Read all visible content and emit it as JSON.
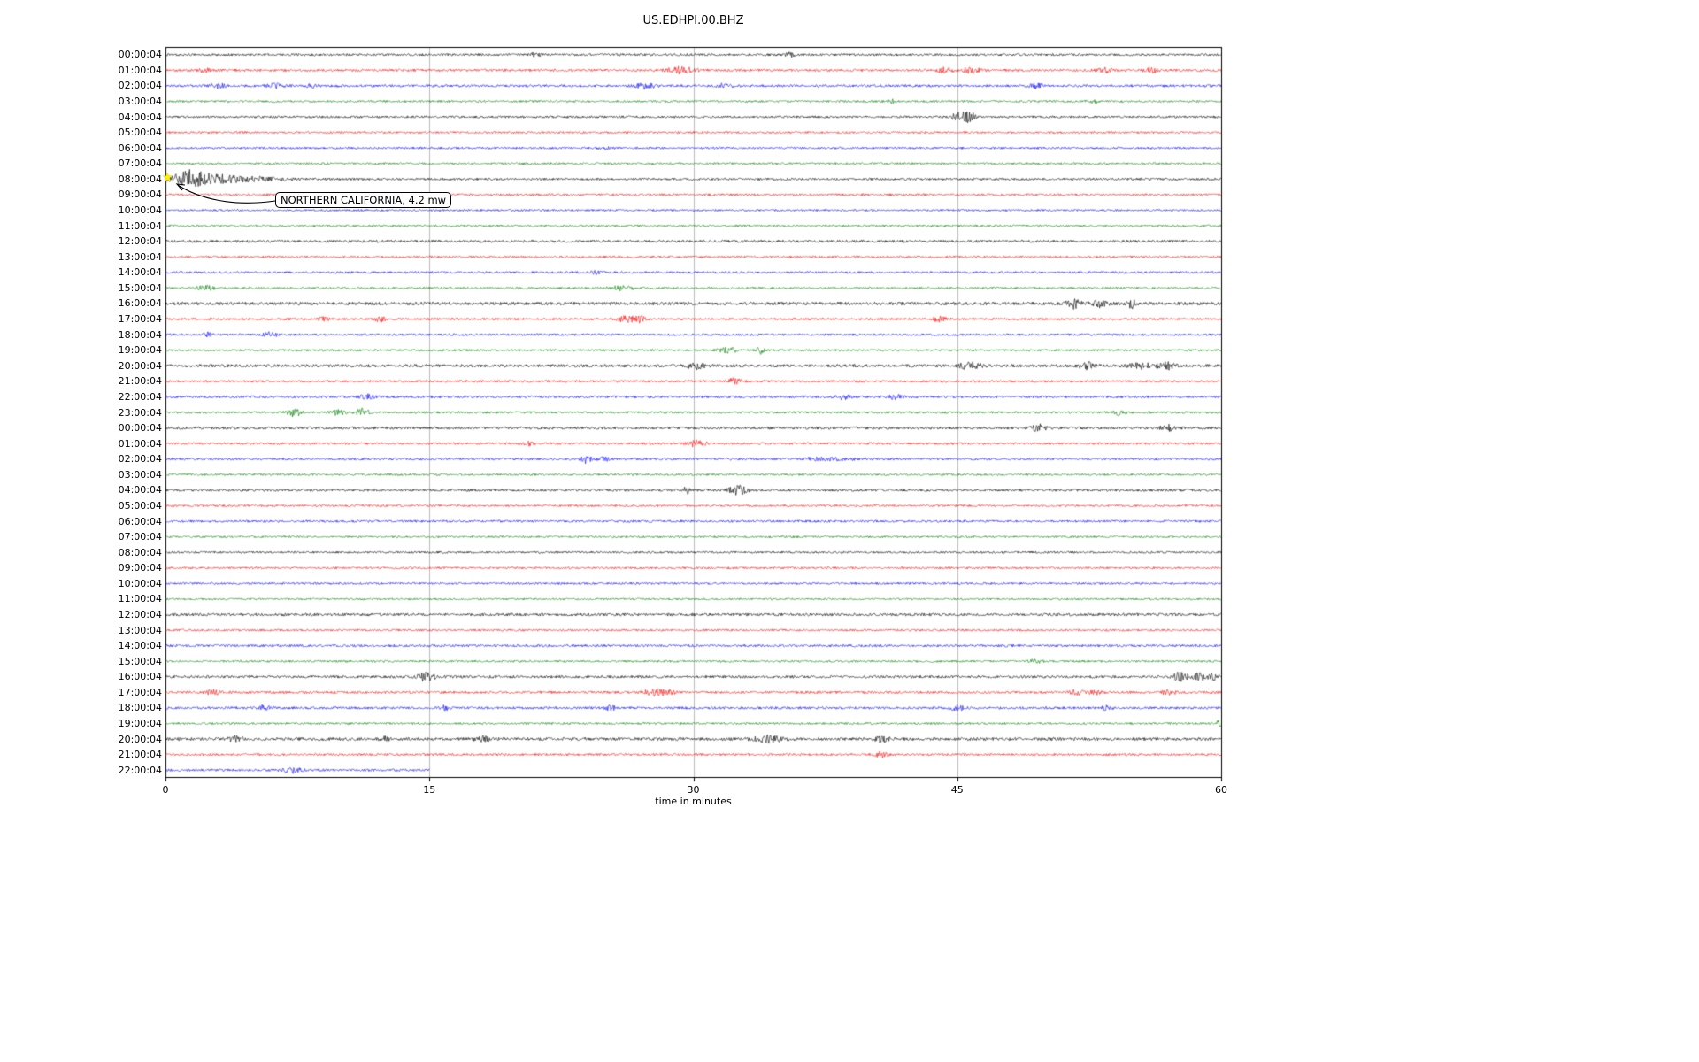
{
  "title": "US.EDHPI.00.BHZ",
  "chart_data": {
    "type": "line",
    "subtype": "helicorder-seismogram",
    "title": "US.EDHPI.00.BHZ",
    "xlabel": "time in minutes",
    "xlim": [
      0,
      60
    ],
    "x_ticks": [
      0,
      15,
      30,
      45,
      60
    ],
    "grid_x": [
      15,
      30,
      45
    ],
    "grid_on": true,
    "trace_color_cycle": [
      "#000000",
      "#ff0000",
      "#0000ff",
      "#008000"
    ],
    "event_marker": {
      "row_index": 8,
      "time_minutes": 0.2,
      "label": "NORTHERN CALIFORNIA, 4.2 mw",
      "marker": "star",
      "marker_color": "#ffff00"
    },
    "rows": [
      {
        "label": "00:00:04",
        "color": "#000000",
        "noise": 1.3,
        "bursts": [
          {
            "t": 21,
            "a": 2,
            "w": 0.3
          },
          {
            "t": 35.5,
            "a": 2,
            "w": 0.3
          }
        ]
      },
      {
        "label": "01:00:04",
        "color": "#ff0000",
        "noise": 1.4,
        "bursts": [
          {
            "t": 2.2,
            "a": 2,
            "w": 0.3
          },
          {
            "t": 29.3,
            "a": 3.5,
            "w": 0.8
          },
          {
            "t": 44.3,
            "a": 3,
            "w": 0.5
          },
          {
            "t": 45.8,
            "a": 3,
            "w": 0.5
          },
          {
            "t": 53.4,
            "a": 2.5,
            "w": 0.4
          },
          {
            "t": 56,
            "a": 2.5,
            "w": 0.4
          }
        ]
      },
      {
        "label": "02:00:04",
        "color": "#0000ff",
        "noise": 1.4,
        "bursts": [
          {
            "t": 3,
            "a": 2.5,
            "w": 0.4
          },
          {
            "t": 6.2,
            "a": 2.5,
            "w": 0.4
          },
          {
            "t": 8.3,
            "a": 2,
            "w": 0.3
          },
          {
            "t": 27.3,
            "a": 3,
            "w": 0.5
          },
          {
            "t": 31.8,
            "a": 2.5,
            "w": 0.4
          },
          {
            "t": 49.5,
            "a": 2.5,
            "w": 0.4
          }
        ]
      },
      {
        "label": "03:00:04",
        "color": "#008000",
        "noise": 1.2,
        "bursts": [
          {
            "t": 41.3,
            "a": 3,
            "w": 0.2
          },
          {
            "t": 52.7,
            "a": 2,
            "w": 0.3
          }
        ]
      },
      {
        "label": "04:00:04",
        "color": "#000000",
        "noise": 1.3,
        "bursts": [
          {
            "t": 45,
            "a": 5,
            "w": 0.3
          },
          {
            "t": 45.6,
            "a": 6,
            "w": 0.4
          }
        ]
      },
      {
        "label": "05:00:04",
        "color": "#ff0000",
        "noise": 1.2,
        "bursts": []
      },
      {
        "label": "06:00:04",
        "color": "#0000ff",
        "noise": 1.2,
        "bursts": [
          {
            "t": 25,
            "a": 1.5,
            "w": 0.3
          }
        ]
      },
      {
        "label": "07:00:04",
        "color": "#008000",
        "noise": 1.2,
        "bursts": []
      },
      {
        "label": "08:00:04",
        "color": "#000000",
        "noise": 1.3,
        "bursts": [
          {
            "t": 1.3,
            "a": 9,
            "w": 0.9
          },
          {
            "t": 2.8,
            "a": 4,
            "w": 1.2
          },
          {
            "t": 5,
            "a": 2,
            "w": 2
          }
        ]
      },
      {
        "label": "09:00:04",
        "color": "#ff0000",
        "noise": 1.2,
        "bursts": []
      },
      {
        "label": "10:00:04",
        "color": "#0000ff",
        "noise": 1.1,
        "bursts": []
      },
      {
        "label": "11:00:04",
        "color": "#008000",
        "noise": 1.1,
        "bursts": []
      },
      {
        "label": "12:00:04",
        "color": "#000000",
        "noise": 1.5,
        "bursts": []
      },
      {
        "label": "13:00:04",
        "color": "#ff0000",
        "noise": 1.2,
        "bursts": []
      },
      {
        "label": "14:00:04",
        "color": "#0000ff",
        "noise": 1.3,
        "bursts": [
          {
            "t": 24.5,
            "a": 1.5,
            "w": 0.3
          }
        ]
      },
      {
        "label": "15:00:04",
        "color": "#008000",
        "noise": 1.2,
        "bursts": [
          {
            "t": 2.3,
            "a": 2.5,
            "w": 0.5
          },
          {
            "t": 26,
            "a": 2.5,
            "w": 0.6
          }
        ]
      },
      {
        "label": "16:00:04",
        "color": "#000000",
        "noise": 1.8,
        "bursts": [
          {
            "t": 51.6,
            "a": 5,
            "w": 0.4
          },
          {
            "t": 53,
            "a": 3.5,
            "w": 0.5
          },
          {
            "t": 54.9,
            "a": 4.5,
            "w": 0.3
          }
        ]
      },
      {
        "label": "17:00:04",
        "color": "#ff0000",
        "noise": 1.3,
        "bursts": [
          {
            "t": 9,
            "a": 2,
            "w": 0.3
          },
          {
            "t": 12.2,
            "a": 3,
            "w": 0.3
          },
          {
            "t": 26.1,
            "a": 3.5,
            "w": 0.4
          },
          {
            "t": 26.9,
            "a": 3.5,
            "w": 0.4
          },
          {
            "t": 44,
            "a": 2.5,
            "w": 0.4
          }
        ]
      },
      {
        "label": "18:00:04",
        "color": "#0000ff",
        "noise": 1.3,
        "bursts": [
          {
            "t": 2.4,
            "a": 2,
            "w": 0.3
          },
          {
            "t": 6,
            "a": 2.5,
            "w": 0.4
          }
        ]
      },
      {
        "label": "19:00:04",
        "color": "#008000",
        "noise": 1.2,
        "bursts": [
          {
            "t": 32,
            "a": 3,
            "w": 0.5
          },
          {
            "t": 33.8,
            "a": 4,
            "w": 0.2
          }
        ]
      },
      {
        "label": "20:00:04",
        "color": "#000000",
        "noise": 1.7,
        "bursts": [
          {
            "t": 30.3,
            "a": 3.5,
            "w": 0.6
          },
          {
            "t": 45.7,
            "a": 3.5,
            "w": 0.6
          },
          {
            "t": 52.4,
            "a": 3.5,
            "w": 0.5
          },
          {
            "t": 55.5,
            "a": 3,
            "w": 0.7
          },
          {
            "t": 57,
            "a": 3.5,
            "w": 0.5
          }
        ]
      },
      {
        "label": "21:00:04",
        "color": "#ff0000",
        "noise": 1.3,
        "bursts": [
          {
            "t": 32.3,
            "a": 3,
            "w": 0.4
          }
        ]
      },
      {
        "label": "22:00:04",
        "color": "#0000ff",
        "noise": 1.4,
        "bursts": [
          {
            "t": 11.5,
            "a": 2.5,
            "w": 0.4
          },
          {
            "t": 38.5,
            "a": 2.5,
            "w": 0.4
          },
          {
            "t": 41.5,
            "a": 2.5,
            "w": 0.4
          }
        ]
      },
      {
        "label": "23:00:04",
        "color": "#008000",
        "noise": 1.3,
        "bursts": [
          {
            "t": 7.3,
            "a": 4.5,
            "w": 0.4
          },
          {
            "t": 9.8,
            "a": 3,
            "w": 0.4
          },
          {
            "t": 11.2,
            "a": 5,
            "w": 0.3
          },
          {
            "t": 54.2,
            "a": 2.5,
            "w": 0.3
          }
        ]
      },
      {
        "label": "00:00:04",
        "color": "#000000",
        "noise": 1.6,
        "bursts": [
          {
            "t": 49.6,
            "a": 3.5,
            "w": 0.4
          },
          {
            "t": 56.9,
            "a": 3,
            "w": 0.5
          }
        ]
      },
      {
        "label": "01:00:04",
        "color": "#ff0000",
        "noise": 1.3,
        "bursts": [
          {
            "t": 20.6,
            "a": 2,
            "w": 0.3
          },
          {
            "t": 30.2,
            "a": 3.5,
            "w": 0.5
          }
        ]
      },
      {
        "label": "02:00:04",
        "color": "#0000ff",
        "noise": 1.3,
        "bursts": [
          {
            "t": 23.9,
            "a": 4,
            "w": 0.3
          },
          {
            "t": 24.9,
            "a": 2.5,
            "w": 0.3
          },
          {
            "t": 37.5,
            "a": 1.5,
            "w": 1.5
          }
        ]
      },
      {
        "label": "03:00:04",
        "color": "#008000",
        "noise": 1.2,
        "bursts": []
      },
      {
        "label": "04:00:04",
        "color": "#000000",
        "noise": 1.4,
        "bursts": [
          {
            "t": 29.6,
            "a": 4.5,
            "w": 0.15
          },
          {
            "t": 32.3,
            "a": 5.5,
            "w": 0.3
          },
          {
            "t": 32.8,
            "a": 4,
            "w": 0.3
          }
        ]
      },
      {
        "label": "05:00:04",
        "color": "#ff0000",
        "noise": 1.2,
        "bursts": []
      },
      {
        "label": "06:00:04",
        "color": "#0000ff",
        "noise": 1.3,
        "bursts": []
      },
      {
        "label": "07:00:04",
        "color": "#008000",
        "noise": 1.2,
        "bursts": []
      },
      {
        "label": "08:00:04",
        "color": "#000000",
        "noise": 1.2,
        "bursts": []
      },
      {
        "label": "09:00:04",
        "color": "#ff0000",
        "noise": 1.2,
        "bursts": []
      },
      {
        "label": "10:00:04",
        "color": "#0000ff",
        "noise": 1.2,
        "bursts": []
      },
      {
        "label": "11:00:04",
        "color": "#008000",
        "noise": 1.1,
        "bursts": []
      },
      {
        "label": "12:00:04",
        "color": "#000000",
        "noise": 1.6,
        "bursts": []
      },
      {
        "label": "13:00:04",
        "color": "#ff0000",
        "noise": 1.2,
        "bursts": []
      },
      {
        "label": "14:00:04",
        "color": "#0000ff",
        "noise": 1.4,
        "bursts": []
      },
      {
        "label": "15:00:04",
        "color": "#008000",
        "noise": 1.2,
        "bursts": [
          {
            "t": 49.5,
            "a": 2,
            "w": 0.4
          }
        ]
      },
      {
        "label": "16:00:04",
        "color": "#000000",
        "noise": 1.5,
        "bursts": [
          {
            "t": 14.8,
            "a": 4.5,
            "w": 0.5
          },
          {
            "t": 57.7,
            "a": 5,
            "w": 0.4
          },
          {
            "t": 58.8,
            "a": 4,
            "w": 0.4
          },
          {
            "t": 59.5,
            "a": 3.5,
            "w": 0.3
          }
        ]
      },
      {
        "label": "17:00:04",
        "color": "#ff0000",
        "noise": 1.4,
        "bursts": [
          {
            "t": 2.7,
            "a": 2.5,
            "w": 0.4
          },
          {
            "t": 27.7,
            "a": 3.5,
            "w": 0.5
          },
          {
            "t": 28.5,
            "a": 3,
            "w": 0.4
          },
          {
            "t": 51.8,
            "a": 2.5,
            "w": 0.4
          },
          {
            "t": 52.8,
            "a": 2.5,
            "w": 0.3
          },
          {
            "t": 57,
            "a": 2.5,
            "w": 0.4
          }
        ]
      },
      {
        "label": "18:00:04",
        "color": "#0000ff",
        "noise": 1.4,
        "bursts": [
          {
            "t": 5.6,
            "a": 2.5,
            "w": 0.4
          },
          {
            "t": 15.8,
            "a": 2.5,
            "w": 0.3
          },
          {
            "t": 25.3,
            "a": 2.5,
            "w": 0.3
          },
          {
            "t": 45,
            "a": 2.5,
            "w": 0.4
          },
          {
            "t": 53.5,
            "a": 2,
            "w": 0.3
          }
        ]
      },
      {
        "label": "19:00:04",
        "color": "#008000",
        "noise": 1.2,
        "bursts": [
          {
            "t": 59.9,
            "a": 7,
            "w": 0.15
          }
        ]
      },
      {
        "label": "20:00:04",
        "color": "#000000",
        "noise": 1.7,
        "bursts": [
          {
            "t": 4,
            "a": 2.5,
            "w": 0.4
          },
          {
            "t": 12.4,
            "a": 2.5,
            "w": 0.3
          },
          {
            "t": 18,
            "a": 2.5,
            "w": 0.4
          },
          {
            "t": 34.3,
            "a": 3.5,
            "w": 0.8
          },
          {
            "t": 40.7,
            "a": 3,
            "w": 0.4
          }
        ]
      },
      {
        "label": "21:00:04",
        "color": "#ff0000",
        "noise": 1.3,
        "bursts": [
          {
            "t": 40.7,
            "a": 2.5,
            "w": 0.4
          }
        ]
      },
      {
        "label": "22:00:04",
        "color": "#0000ff",
        "noise": 1.4,
        "end": 15,
        "bursts": [
          {
            "t": 7.2,
            "a": 3,
            "w": 0.5
          }
        ]
      }
    ]
  }
}
